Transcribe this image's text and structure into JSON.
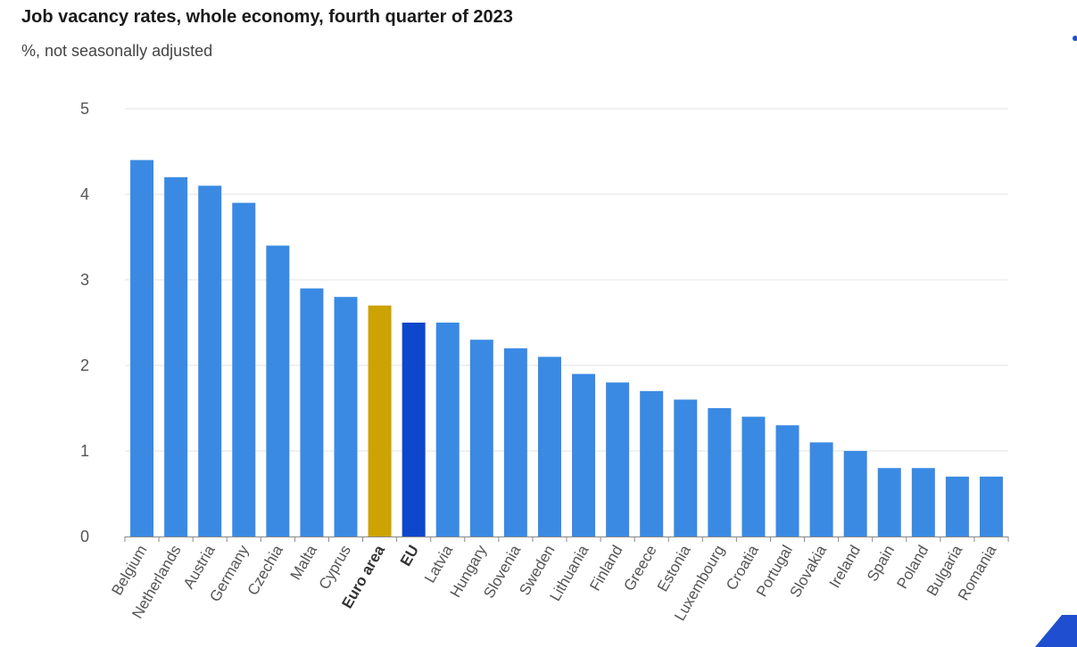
{
  "chart_data": {
    "type": "bar",
    "title": "Job vacancy rates, whole economy, fourth quarter of 2023",
    "subtitle": "%, not seasonally adjusted",
    "xlabel": "",
    "ylabel": "",
    "ylim": [
      0,
      5
    ],
    "yticks": [
      0,
      1,
      2,
      3,
      4,
      5
    ],
    "grid": true,
    "categories": [
      "Belgium",
      "Netherlands",
      "Austria",
      "Germany",
      "Czechia",
      "Malta",
      "Cyprus",
      "Euro area",
      "EU",
      "Latvia",
      "Hungary",
      "Slovenia",
      "Sweden",
      "Lithuania",
      "Finland",
      "Greece",
      "Estonia",
      "Luxembourg",
      "Croatia",
      "Portugal",
      "Slovakia",
      "Ireland",
      "Spain",
      "Poland",
      "Bulgaria",
      "Romania"
    ],
    "values": [
      4.4,
      4.2,
      4.1,
      3.9,
      3.4,
      2.9,
      2.8,
      2.7,
      2.5,
      2.5,
      2.3,
      2.2,
      2.1,
      1.9,
      1.8,
      1.7,
      1.6,
      1.5,
      1.4,
      1.3,
      1.1,
      1.0,
      0.8,
      0.8,
      0.7,
      0.7
    ],
    "highlight": {
      "Euro area": "#cca300",
      "EU": "#0e47cb"
    },
    "bold_categories": [
      "Euro area",
      "EU"
    ],
    "colors": {
      "default_bar": "#3a8ae3",
      "grid": "#e3e3e3",
      "axis": "#888888"
    }
  }
}
